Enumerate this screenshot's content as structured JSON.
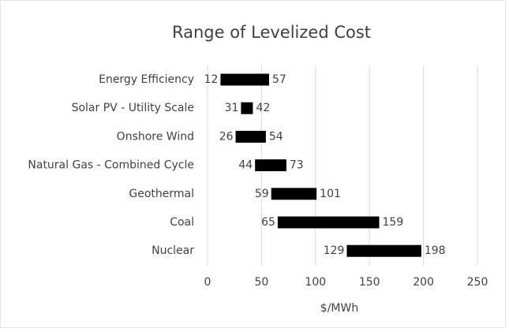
{
  "chart_data": {
    "type": "range_bar",
    "title": "Range of Levelized Cost",
    "x_label": "$/MWh",
    "categories": [
      "Energy Efficiency",
      "Solar PV - Utility Scale",
      "Onshore Wind",
      "Natural Gas - Combined Cycle",
      "Geothermal",
      "Coal",
      "Nuclear"
    ],
    "low": [
      12,
      31,
      26,
      44,
      59,
      65,
      129
    ],
    "high": [
      57,
      42,
      54,
      73,
      101,
      159,
      198
    ],
    "color": "#000000",
    "xlim": [
      0,
      250
    ],
    "xticks": [
      0,
      50,
      100,
      150,
      200,
      250
    ],
    "grid": true
  }
}
